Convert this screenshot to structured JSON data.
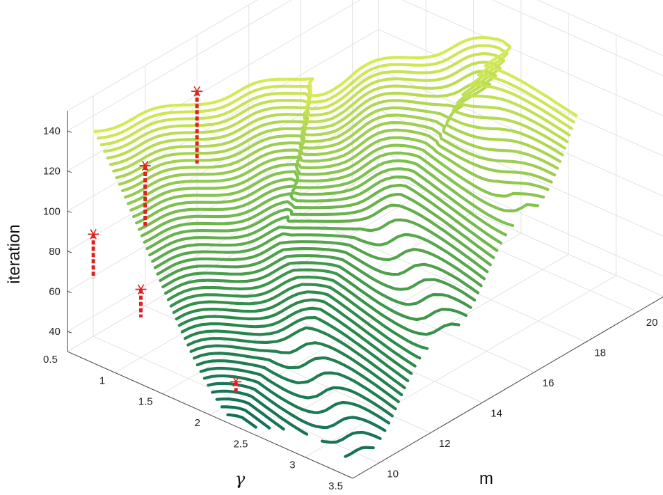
{
  "chart_data": {
    "type": "surface-contour3d",
    "zlabel": "iteration",
    "xlabel": "m",
    "ylabel": "γ",
    "x_ticks": [
      "10",
      "12",
      "14",
      "16",
      "18",
      "20"
    ],
    "y_ticks": [
      "0.5",
      "1",
      "1.5",
      "2",
      "2.5",
      "3",
      "3.5"
    ],
    "z_ticks": [
      "40",
      "60",
      "80",
      "100",
      "120",
      "140"
    ],
    "xlim": [
      9,
      21
    ],
    "ylim": [
      0.5,
      3.5
    ],
    "zlim": [
      30,
      150
    ],
    "grid": true,
    "colormap": [
      "#0f6d5a",
      "#2e8b4a",
      "#7cbf4d",
      "#d8ea55"
    ],
    "marker_color": "#e0221f",
    "markers": [
      {
        "m": 10,
        "gamma": 2.0,
        "iteration": 39,
        "base": 33
      },
      {
        "m": 10,
        "gamma": 1.0,
        "iteration": 64,
        "base": 50
      },
      {
        "m": 10,
        "gamma": 0.5,
        "iteration": 81,
        "base": 59
      },
      {
        "m": 12,
        "gamma": 0.5,
        "iteration": 100,
        "base": 70
      },
      {
        "m": 14,
        "gamma": 0.5,
        "iteration": 122,
        "base": 86
      }
    ]
  }
}
